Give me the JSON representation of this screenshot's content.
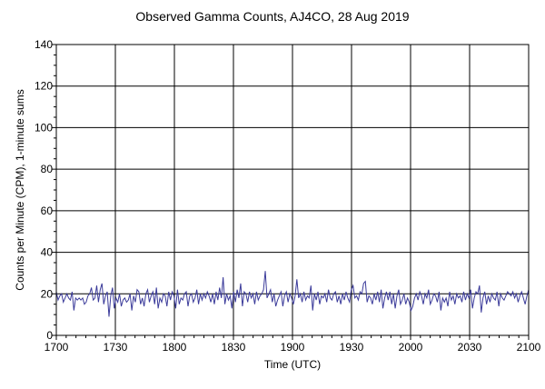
{
  "chart_data": {
    "type": "line",
    "title": "Observed Gamma Counts, AJ4CO, 28 Aug 2019",
    "xlabel": "Time (UTC)",
    "ylabel": "Counts per Minute (CPM), 1-minute sums",
    "x_tick_labels": [
      "1700",
      "1730",
      "1800",
      "1830",
      "1900",
      "1930",
      "2000",
      "2030",
      "2100"
    ],
    "x_range_minutes": [
      0,
      240
    ],
    "ylim": [
      0,
      140
    ],
    "y_ticks": [
      0,
      20,
      40,
      60,
      80,
      100,
      120,
      140
    ],
    "grid": true,
    "line_color": "#3b3b9a",
    "series": [
      {
        "values": [
          21,
          17,
          19,
          20,
          16,
          18,
          20,
          18,
          17,
          21,
          12,
          18,
          17,
          18,
          17,
          18,
          15,
          16,
          19,
          20,
          23,
          17,
          18,
          24,
          16,
          22,
          25,
          15,
          19,
          21,
          9,
          19,
          23,
          13,
          18,
          16,
          20,
          14,
          17,
          18,
          16,
          17,
          20,
          12,
          19,
          16,
          22,
          21,
          15,
          18,
          14,
          20,
          22,
          16,
          19,
          21,
          15,
          23,
          13,
          18,
          16,
          20,
          19,
          14,
          21,
          17,
          21,
          19,
          13,
          22,
          15,
          18,
          17,
          20,
          21,
          14,
          19,
          20,
          16,
          18,
          22,
          15,
          20,
          17,
          20,
          18,
          21,
          19,
          16,
          20,
          15,
          21,
          17,
          23,
          18,
          28,
          15,
          20,
          17,
          19,
          13,
          21,
          16,
          22,
          18,
          25,
          14,
          21,
          20,
          16,
          21,
          18,
          20,
          15,
          21,
          17,
          19,
          20,
          22,
          31,
          18,
          20,
          22,
          16,
          20,
          14,
          17,
          19,
          21,
          14,
          19,
          21,
          16,
          20,
          18,
          15,
          19,
          27,
          18,
          20,
          16,
          21,
          17,
          19,
          18,
          24,
          12,
          20,
          17,
          21,
          15,
          19,
          18,
          20,
          16,
          22,
          18,
          17,
          20,
          21,
          16,
          19,
          15,
          20,
          17,
          21,
          18,
          16,
          22,
          24,
          18,
          19,
          17,
          21,
          20,
          25,
          26,
          16,
          19,
          18,
          15,
          20,
          17,
          21,
          16,
          22,
          13,
          18,
          21,
          17,
          21,
          15,
          20,
          13,
          19,
          22,
          15,
          17,
          20,
          15,
          18,
          16,
          12,
          14,
          18,
          20,
          17,
          21,
          19,
          15,
          20,
          18,
          22,
          15,
          17,
          20,
          19,
          16,
          21,
          12,
          18,
          16,
          18,
          14,
          21,
          17,
          19,
          15,
          20,
          18,
          19,
          16,
          21,
          17,
          20,
          18,
          22,
          13,
          18,
          21,
          20,
          24,
          11,
          18,
          21,
          15,
          19,
          16,
          20,
          18,
          17,
          21,
          14,
          20,
          18,
          17,
          19,
          21,
          20,
          19,
          21,
          18,
          20,
          16,
          19,
          21,
          18,
          15,
          19,
          22
        ]
      }
    ]
  }
}
